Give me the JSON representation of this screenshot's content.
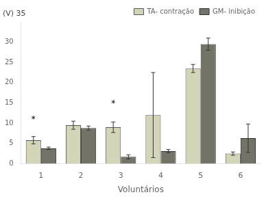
{
  "chart_data": {
    "type": "bar",
    "xlabel": "Voluntários",
    "ylabel": "(V) 35",
    "categories": [
      "1",
      "2",
      "3",
      "4",
      "5",
      "6"
    ],
    "series": [
      {
        "name": "TA- contração",
        "color": "#d4d4b8",
        "values": [
          5.8,
          9.5,
          9.0,
          12.0,
          23.5,
          2.5
        ],
        "errors": [
          0.9,
          1.0,
          1.3,
          10.5,
          1.0,
          0.4
        ]
      },
      {
        "name": "GM- inibição",
        "color": "#737367",
        "values": [
          3.8,
          8.8,
          1.7,
          3.1,
          29.5,
          6.3
        ],
        "errors": [
          0.3,
          0.5,
          0.5,
          0.4,
          1.5,
          3.5
        ]
      }
    ],
    "annotations": [
      {
        "text": "*",
        "x": "1",
        "y": 10.5,
        "series": "TA- contração"
      },
      {
        "text": "*",
        "x": "3",
        "y": 14.5,
        "series": "TA- contração"
      }
    ],
    "ylim": [
      0,
      35
    ],
    "yticks": [
      0,
      5,
      10,
      15,
      20,
      25,
      30
    ],
    "grid": false,
    "legend": "upper right"
  }
}
